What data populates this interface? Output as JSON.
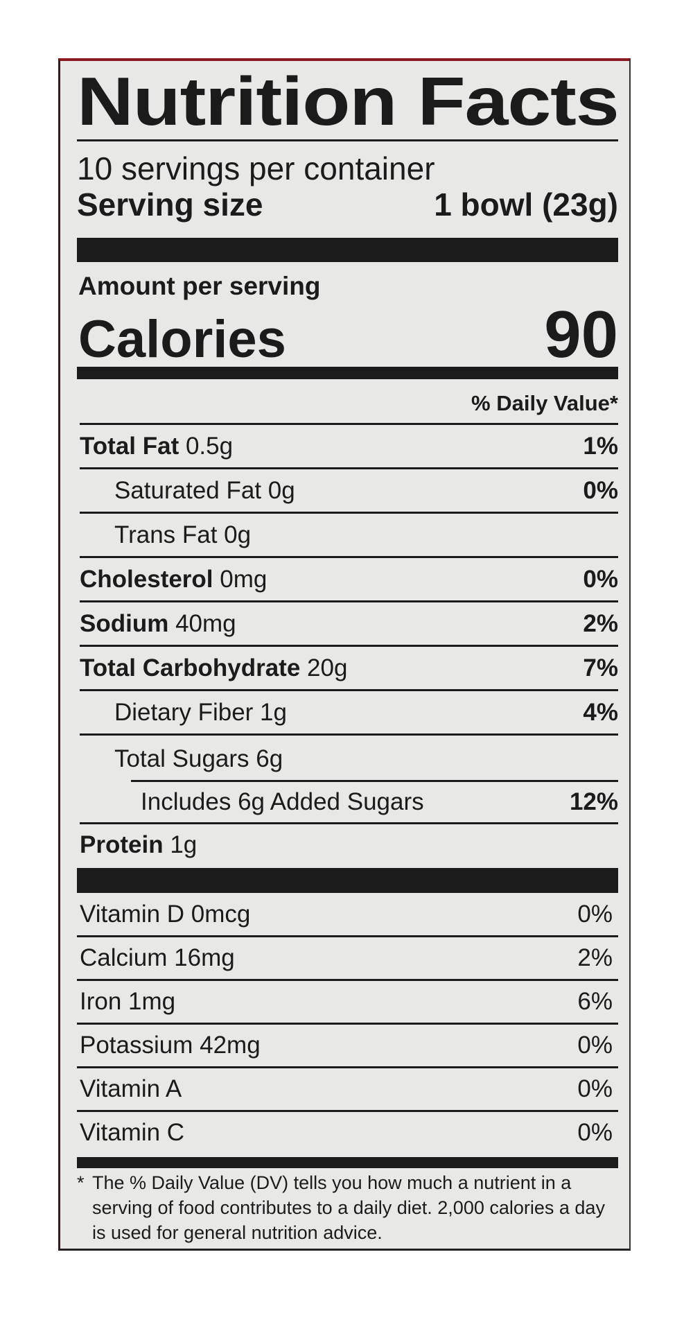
{
  "title": "Nutrition Facts",
  "servings_per_container": "10 servings per container",
  "serving_size": {
    "label": "Serving size",
    "value": "1 bowl (23g)"
  },
  "amount_per_serving": "Amount per serving",
  "calories": {
    "label": "Calories",
    "value": "90"
  },
  "daily_value_header": "% Daily Value*",
  "nutrients": [
    {
      "name": "Total Fat",
      "amount": "0.5g",
      "dv": "1%"
    },
    {
      "name": "Saturated Fat 0g",
      "dv": "0%"
    },
    {
      "name": "Trans Fat 0g",
      "dv": ""
    },
    {
      "name": "Cholesterol",
      "amount": "0mg",
      "dv": "0%"
    },
    {
      "name": "Sodium",
      "amount": "40mg",
      "dv": "2%"
    },
    {
      "name": "Total Carbohydrate",
      "amount": "20g",
      "dv": "7%"
    },
    {
      "name": "Dietary Fiber 1g",
      "dv": "4%"
    },
    {
      "name": "Total Sugars 6g",
      "dv": ""
    },
    {
      "name": "Includes 6g Added Sugars",
      "dv": "12%"
    },
    {
      "name": "Protein",
      "amount": "1g",
      "dv": ""
    }
  ],
  "vitamins": [
    {
      "name": "Vitamin D 0mcg",
      "dv": "0%"
    },
    {
      "name": "Calcium 16mg",
      "dv": "2%"
    },
    {
      "name": "Iron 1mg",
      "dv": "6%"
    },
    {
      "name": "Potassium 42mg",
      "dv": "0%"
    },
    {
      "name": "Vitamin A",
      "dv": "0%"
    },
    {
      "name": "Vitamin C",
      "dv": "0%"
    }
  ],
  "footnote": {
    "asterisk": "*",
    "text": "The % Daily Value (DV) tells you how much a nutrient in a serving of food contributes to a daily diet. 2,000 calories a day is used for general nutrition advice."
  },
  "colors": {
    "background": "#e8e8e6",
    "text": "#1b1b1b",
    "border_accent": "#8a1a22"
  }
}
